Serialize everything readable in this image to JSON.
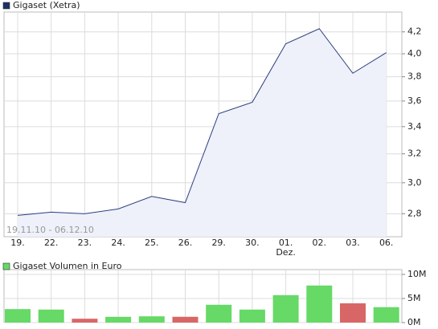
{
  "chart_data": [
    {
      "type": "line",
      "title": "Gigaset (Xetra)",
      "legend_color": "#1c3164",
      "categories": [
        "19.",
        "22.",
        "23.",
        "24.",
        "25.",
        "26.",
        "29.",
        "30.",
        "01.",
        "02.",
        "03.",
        "06."
      ],
      "month_labels": [
        null,
        null,
        null,
        null,
        null,
        null,
        null,
        null,
        "Dez.",
        null,
        null,
        null
      ],
      "values": [
        2.79,
        2.81,
        2.8,
        2.83,
        2.91,
        2.87,
        3.5,
        3.59,
        4.09,
        4.23,
        3.83,
        4.01
      ],
      "color": "#2b3f7a",
      "fill": "#eef0fa",
      "ylim": [
        2.66,
        4.39
      ],
      "log_scale": true,
      "yticks": [
        {
          "value": 2.8,
          "label": "2,8"
        },
        {
          "value": 3.0,
          "label": "3,0"
        },
        {
          "value": 3.2,
          "label": "3,2"
        },
        {
          "value": 3.4,
          "label": "3,4"
        },
        {
          "value": 3.6,
          "label": "3,6"
        },
        {
          "value": 3.8,
          "label": "3,8"
        },
        {
          "value": 4.0,
          "label": "4,0"
        },
        {
          "value": 4.2,
          "label": "4,2"
        }
      ],
      "grid": true,
      "annotation": "19.11.10 - 06.12.10"
    },
    {
      "type": "bar",
      "title": "Gigaset Volumen in Euro",
      "legend_color": "#66d966",
      "values": [
        2800000,
        2700000,
        800000,
        1200000,
        1300000,
        1200000,
        3700000,
        2700000,
        5700000,
        7700000,
        4000000,
        3200000
      ],
      "colors": [
        "#66d966",
        "#66d966",
        "#d96666",
        "#66d966",
        "#66d966",
        "#d96666",
        "#66d966",
        "#66d966",
        "#66d966",
        "#66d966",
        "#d96666",
        "#66d966"
      ],
      "ylim": [
        0,
        11000000
      ],
      "yticks": [
        {
          "value": 0,
          "label": "0M"
        },
        {
          "value": 5000000,
          "label": "5M"
        },
        {
          "value": 10000000,
          "label": "10M"
        }
      ],
      "grid": true
    }
  ]
}
